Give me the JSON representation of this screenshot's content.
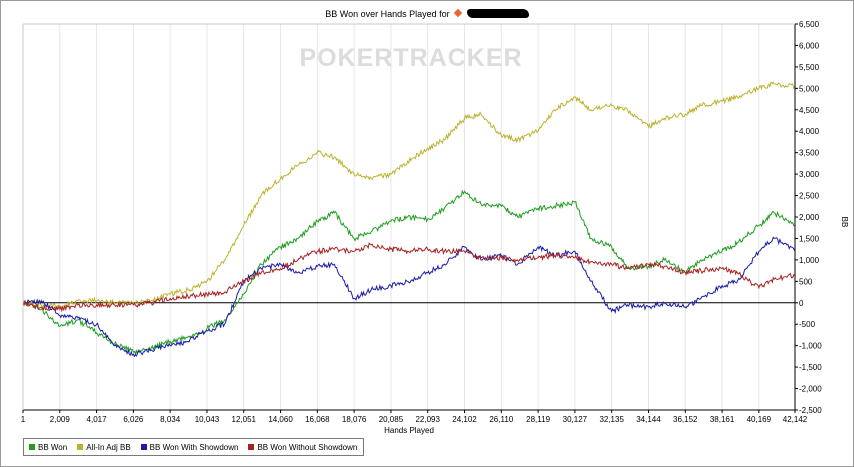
{
  "chart_data": {
    "type": "line",
    "title_prefix": "BB Won over Hands Played for",
    "watermark": "POKERTRACKER",
    "xlabel": "Hands Played",
    "ylabel": "BB",
    "xlim": [
      1,
      42142
    ],
    "ylim": [
      -2500,
      6500
    ],
    "x_ticks": [
      1,
      2009,
      4017,
      6026,
      8034,
      10043,
      12051,
      14060,
      16068,
      18076,
      20085,
      22093,
      24102,
      26110,
      28119,
      30127,
      32135,
      34144,
      36152,
      38161,
      40169,
      42142
    ],
    "x_tick_labels": [
      "1",
      "2,009",
      "4,017",
      "6,026",
      "8,034",
      "10,043",
      "12,051",
      "14,060",
      "16,068",
      "18,076",
      "20,085",
      "22,093",
      "24,102",
      "26,110",
      "28,119",
      "30,127",
      "32,135",
      "34,144",
      "36,152",
      "38,161",
      "40,169",
      "42,142"
    ],
    "y_ticks": [
      6500,
      6000,
      5500,
      5000,
      4500,
      4000,
      3500,
      3000,
      2500,
      2000,
      1500,
      1000,
      500,
      0,
      -500,
      -1000,
      -1500,
      -2000,
      -2500
    ],
    "y_tick_labels": [
      "6,500",
      "6,000",
      "5,500",
      "5,000",
      "4,500",
      "4,000",
      "3,500",
      "3,000",
      "2,500",
      "2,000",
      "1,500",
      "1,000",
      "500",
      "0",
      "-500",
      "-1,000",
      "-1,500",
      "-2,000",
      "-2,500"
    ],
    "grid": "vertical",
    "legend_position": "bottom-left",
    "series": [
      {
        "name": "BB Won",
        "color": "#1f9e1f",
        "x": [
          1,
          1000,
          2009,
          3000,
          4017,
          5000,
          6026,
          7000,
          8034,
          9000,
          10043,
          11000,
          12051,
          13000,
          14060,
          15000,
          16068,
          17000,
          18076,
          19000,
          20085,
          21000,
          22093,
          23000,
          24102,
          25000,
          26110,
          27000,
          28119,
          29000,
          30127,
          31000,
          32135,
          33000,
          34144,
          35000,
          36152,
          37000,
          38161,
          39000,
          40169,
          41000,
          42142
        ],
        "values": [
          0,
          -150,
          -550,
          -400,
          -700,
          -950,
          -1150,
          -1050,
          -900,
          -800,
          -600,
          -400,
          200,
          900,
          1300,
          1500,
          1900,
          2100,
          1500,
          1650,
          1900,
          2000,
          1950,
          2200,
          2600,
          2300,
          2250,
          2000,
          2200,
          2250,
          2350,
          1500,
          1300,
          800,
          850,
          1000,
          700,
          1000,
          1200,
          1400,
          1800,
          2100,
          1800
        ]
      },
      {
        "name": "All-In Adj BB",
        "color": "#bdb22f",
        "x": [
          1,
          1000,
          2009,
          3000,
          4017,
          5000,
          6026,
          7000,
          8034,
          9000,
          10043,
          11000,
          12051,
          13000,
          14060,
          15000,
          16068,
          17000,
          18076,
          19000,
          20085,
          21000,
          22093,
          23000,
          24102,
          25000,
          26110,
          27000,
          28119,
          29000,
          30127,
          31000,
          32135,
          33000,
          34144,
          35000,
          36152,
          37000,
          38161,
          39000,
          40169,
          41000,
          42142
        ],
        "values": [
          0,
          -50,
          -100,
          50,
          50,
          0,
          0,
          50,
          200,
          300,
          500,
          1000,
          1800,
          2500,
          2900,
          3200,
          3500,
          3400,
          3000,
          2900,
          3000,
          3300,
          3600,
          3800,
          4300,
          4400,
          3900,
          3800,
          4000,
          4500,
          4800,
          4500,
          4600,
          4500,
          4100,
          4300,
          4400,
          4600,
          4700,
          4800,
          5000,
          5100,
          5050
        ]
      },
      {
        "name": "BB Won With Showdown",
        "color": "#1c1ca8",
        "x": [
          1,
          1000,
          2009,
          3000,
          4017,
          5000,
          6026,
          7000,
          8034,
          9000,
          10043,
          11000,
          12051,
          13000,
          14060,
          15000,
          16068,
          17000,
          18076,
          19000,
          20085,
          21000,
          22093,
          23000,
          24102,
          25000,
          26110,
          27000,
          28119,
          29000,
          30127,
          31000,
          32135,
          33000,
          34144,
          35000,
          36152,
          37000,
          38161,
          39000,
          40169,
          41000,
          42142
        ],
        "values": [
          0,
          50,
          -300,
          -350,
          -500,
          -1000,
          -1200,
          -1100,
          -1000,
          -900,
          -650,
          -500,
          500,
          800,
          900,
          700,
          850,
          900,
          100,
          300,
          400,
          500,
          700,
          900,
          1300,
          1000,
          1100,
          900,
          1300,
          1100,
          1200,
          500,
          -200,
          -50,
          -100,
          0,
          -100,
          100,
          400,
          500,
          1200,
          1500,
          1200
        ]
      },
      {
        "name": "BB Won Without Showdown",
        "color": "#a82222",
        "x": [
          1,
          1000,
          2009,
          3000,
          4017,
          5000,
          6026,
          7000,
          8034,
          9000,
          10043,
          11000,
          12051,
          13000,
          14060,
          15000,
          16068,
          17000,
          18076,
          19000,
          20085,
          21000,
          22093,
          23000,
          24102,
          25000,
          26110,
          27000,
          28119,
          29000,
          30127,
          31000,
          32135,
          33000,
          34144,
          35000,
          36152,
          37000,
          38161,
          39000,
          40169,
          41000,
          42142
        ],
        "values": [
          0,
          -100,
          -150,
          -50,
          -50,
          -50,
          -50,
          0,
          100,
          150,
          200,
          250,
          500,
          700,
          800,
          1000,
          1200,
          1250,
          1200,
          1350,
          1250,
          1200,
          1250,
          1200,
          1200,
          1050,
          1050,
          1000,
          1050,
          1100,
          1050,
          950,
          900,
          800,
          900,
          850,
          700,
          750,
          800,
          700,
          350,
          550,
          650
        ]
      }
    ]
  }
}
